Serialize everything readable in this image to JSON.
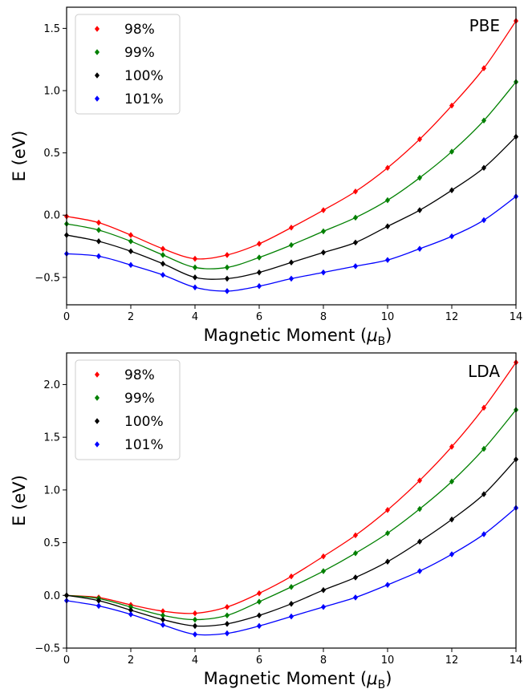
{
  "chart_data": [
    {
      "type": "scatter",
      "panel_label": "PBE",
      "xlabel": "Magnetic Moment (μB)",
      "ylabel": "E (eV)",
      "xlim": [
        0,
        14
      ],
      "ylim": [
        -0.72,
        1.67
      ],
      "xticks": [
        0,
        2,
        4,
        6,
        8,
        10,
        12,
        14
      ],
      "yticks": [
        -0.5,
        0.0,
        0.5,
        1.0,
        1.5
      ],
      "ytick_labels": [
        "−0.5",
        "0.0",
        "0.5",
        "1.0",
        "1.5"
      ],
      "grid": false,
      "legend_position": "top-left",
      "x": [
        0,
        1,
        2,
        3,
        4,
        5,
        6,
        7,
        8,
        9,
        10,
        11,
        12,
        13,
        14
      ],
      "series": [
        {
          "name": "98%",
          "color": "#ff0000",
          "values": [
            -0.01,
            -0.06,
            -0.16,
            -0.27,
            -0.35,
            -0.32,
            -0.23,
            -0.1,
            0.04,
            0.19,
            0.38,
            0.61,
            0.88,
            1.18,
            1.56
          ]
        },
        {
          "name": "99%",
          "color": "#008000",
          "values": [
            -0.07,
            -0.12,
            -0.21,
            -0.32,
            -0.42,
            -0.42,
            -0.34,
            -0.24,
            -0.13,
            -0.02,
            0.12,
            0.3,
            0.51,
            0.76,
            1.07
          ]
        },
        {
          "name": "100%",
          "color": "#000000",
          "values": [
            -0.16,
            -0.21,
            -0.29,
            -0.39,
            -0.5,
            -0.51,
            -0.46,
            -0.38,
            -0.3,
            -0.22,
            -0.09,
            0.04,
            0.2,
            0.38,
            0.63
          ]
        },
        {
          "name": "101%",
          "color": "#0000ff",
          "values": [
            -0.31,
            -0.33,
            -0.4,
            -0.48,
            -0.58,
            -0.61,
            -0.57,
            -0.51,
            -0.46,
            -0.41,
            -0.36,
            -0.27,
            -0.17,
            -0.04,
            0.15
          ]
        }
      ]
    },
    {
      "type": "scatter",
      "panel_label": "LDA",
      "xlabel": "Magnetic Moment (μB)",
      "ylabel": "E (eV)",
      "xlim": [
        0,
        14
      ],
      "ylim": [
        -0.5,
        2.3
      ],
      "xticks": [
        0,
        2,
        4,
        6,
        8,
        10,
        12,
        14
      ],
      "yticks": [
        -0.5,
        0.0,
        0.5,
        1.0,
        1.5,
        2.0
      ],
      "ytick_labels": [
        "−0.5",
        "0.0",
        "0.5",
        "1.0",
        "1.5",
        "2.0"
      ],
      "grid": false,
      "legend_position": "top-left",
      "x": [
        0,
        1,
        2,
        3,
        4,
        5,
        6,
        7,
        8,
        9,
        10,
        11,
        12,
        13,
        14
      ],
      "series": [
        {
          "name": "98%",
          "color": "#ff0000",
          "values": [
            0.0,
            -0.02,
            -0.09,
            -0.15,
            -0.17,
            -0.11,
            0.02,
            0.18,
            0.37,
            0.57,
            0.81,
            1.09,
            1.41,
            1.78,
            2.21
          ]
        },
        {
          "name": "99%",
          "color": "#008000",
          "values": [
            0.0,
            -0.03,
            -0.11,
            -0.19,
            -0.23,
            -0.19,
            -0.06,
            0.08,
            0.23,
            0.4,
            0.59,
            0.82,
            1.08,
            1.39,
            1.76
          ]
        },
        {
          "name": "100%",
          "color": "#000000",
          "values": [
            0.0,
            -0.05,
            -0.14,
            -0.23,
            -0.29,
            -0.27,
            -0.19,
            -0.08,
            0.05,
            0.17,
            0.32,
            0.51,
            0.72,
            0.96,
            1.29
          ]
        },
        {
          "name": "101%",
          "color": "#0000ff",
          "values": [
            -0.05,
            -0.1,
            -0.18,
            -0.28,
            -0.37,
            -0.36,
            -0.29,
            -0.2,
            -0.11,
            -0.02,
            0.1,
            0.23,
            0.39,
            0.58,
            0.83
          ]
        }
      ]
    }
  ]
}
